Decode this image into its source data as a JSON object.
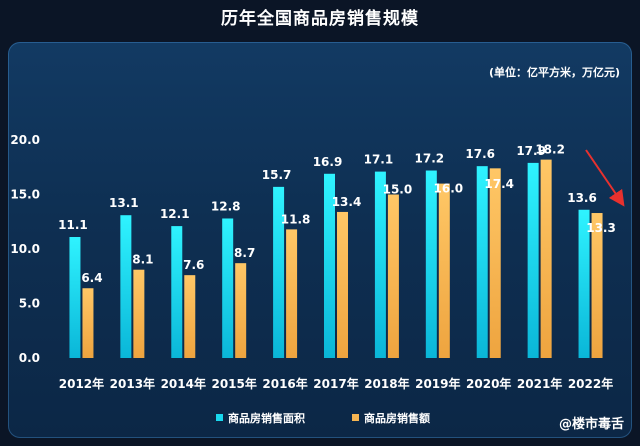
{
  "title": "历年全国商品房销售规模",
  "unit_note": "(单位：亿平方米，万亿元)",
  "watermark": "@楼市毒舌",
  "colors": {
    "area": "#19d8ee",
    "amount": "#f6b552",
    "arrow": "#e8312e",
    "text": "#ffffff"
  },
  "chart_data": {
    "type": "bar",
    "title": "历年全国商品房销售规模",
    "xlabel": "",
    "ylabel": "",
    "categories": [
      "2012年",
      "2013年",
      "2014年",
      "2015年",
      "2016年",
      "2017年",
      "2018年",
      "2019年",
      "2020年",
      "2021年",
      "2022年"
    ],
    "series": [
      {
        "name": "商品房销售面积",
        "values": [
          11.1,
          13.1,
          12.1,
          12.8,
          15.7,
          16.9,
          17.1,
          17.2,
          17.6,
          17.9,
          13.6
        ]
      },
      {
        "name": "商品房销售额",
        "values": [
          6.4,
          8.1,
          7.6,
          8.7,
          11.8,
          13.4,
          15.0,
          16.0,
          17.4,
          18.2,
          13.3
        ]
      }
    ],
    "yticks": [
      "0.0",
      "5.0",
      "10.0",
      "15.0",
      "20.0"
    ],
    "ylim": [
      0,
      20
    ],
    "grid": false,
    "legend": "bottom",
    "annotation": "downward red arrow from 2021 to 2022"
  }
}
